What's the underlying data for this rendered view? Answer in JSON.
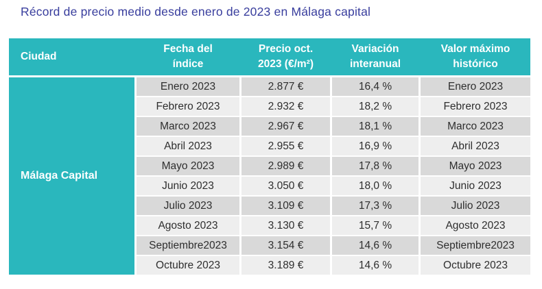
{
  "title": "Récord de precio medio desde enero de 2023 en Málaga capital",
  "colors": {
    "accent_teal": "#2ab7bd",
    "title_blue": "#383d9d",
    "row_dark": "#d9d9d9",
    "row_light": "#eeeeee",
    "header_text": "#ffffff",
    "cell_text": "#2e2e2e",
    "page_background": "#ffffff"
  },
  "table": {
    "headers": {
      "ciudad": "Ciudad",
      "fecha": "Fecha del\níndice",
      "precio": "Precio oct.\n2023 (€/m²)",
      "variacion": "Variación\ninteranual",
      "valor": "Valor máximo\nhistórico"
    },
    "ciudad_value": "Málaga Capital",
    "rows": [
      {
        "fecha": "Enero 2023",
        "precio": "2.877 €",
        "variacion": "16,4 %",
        "valor": "Enero 2023"
      },
      {
        "fecha": "Febrero 2023",
        "precio": "2.932 €",
        "variacion": "18,2 %",
        "valor": "Febrero 2023"
      },
      {
        "fecha": "Marco 2023",
        "precio": "2.967 €",
        "variacion": "18,1 %",
        "valor": "Marco 2023"
      },
      {
        "fecha": "Abril 2023",
        "precio": "2.955 €",
        "variacion": "16,9 %",
        "valor": "Abril 2023"
      },
      {
        "fecha": "Mayo 2023",
        "precio": "2.989 €",
        "variacion": "17,8 %",
        "valor": "Mayo 2023"
      },
      {
        "fecha": "Junio 2023",
        "precio": "3.050 €",
        "variacion": "18,0 %",
        "valor": "Junio 2023"
      },
      {
        "fecha": "Julio 2023",
        "precio": "3.109 €",
        "variacion": "17,3 %",
        "valor": "Julio 2023"
      },
      {
        "fecha": "Agosto 2023",
        "precio": "3.130 €",
        "variacion": "15,7 %",
        "valor": "Agosto 2023"
      },
      {
        "fecha": "Septiembre2023",
        "precio": "3.154 €",
        "variacion": "14,6 %",
        "valor": "Septiembre2023"
      },
      {
        "fecha": "Octubre 2023",
        "precio": "3.189 €",
        "variacion": "14,6 %",
        "valor": "Octubre 2023"
      }
    ]
  },
  "chart_data": {
    "type": "table",
    "title": "Récord de precio medio desde enero de 2023 en Málaga capital",
    "columns": [
      "Ciudad",
      "Fecha del índice",
      "Precio oct. 2023 (€/m²)",
      "Variación interanual",
      "Valor máximo histórico"
    ],
    "ciudad": "Málaga Capital",
    "months": [
      "Enero 2023",
      "Febrero 2023",
      "Marco 2023",
      "Abril 2023",
      "Mayo 2023",
      "Junio 2023",
      "Julio 2023",
      "Agosto 2023",
      "Septiembre2023",
      "Octubre 2023"
    ],
    "precio_eur_m2": [
      2877,
      2932,
      2967,
      2955,
      2989,
      3050,
      3109,
      3130,
      3154,
      3189
    ],
    "variacion_interanual_pct": [
      16.4,
      18.2,
      18.1,
      16.9,
      17.8,
      18.0,
      17.3,
      15.7,
      14.6,
      14.6
    ],
    "valor_maximo_historico": [
      "Enero 2023",
      "Febrero 2023",
      "Marco 2023",
      "Abril 2023",
      "Mayo 2023",
      "Junio 2023",
      "Julio 2023",
      "Agosto 2023",
      "Septiembre2023",
      "Octubre 2023"
    ]
  }
}
